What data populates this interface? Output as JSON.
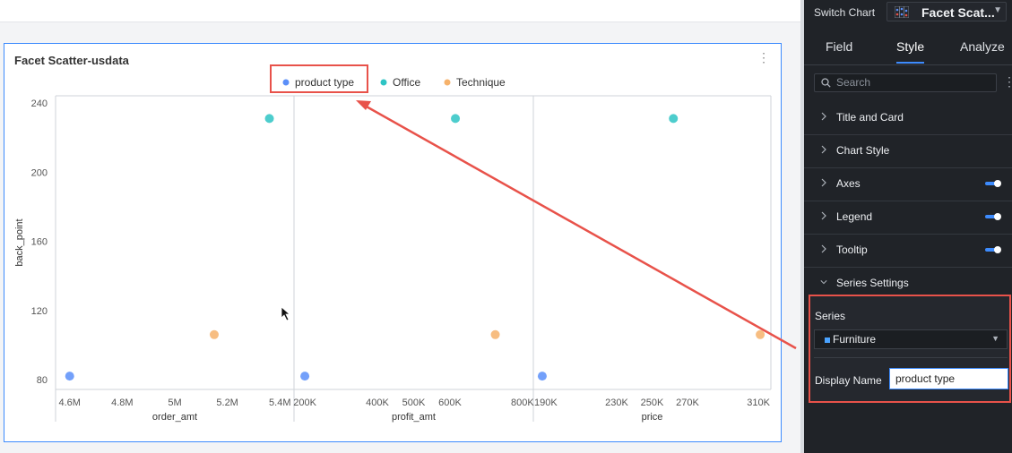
{
  "chart_card": {
    "title": "Facet Scatter-usdata",
    "menu_icon": "more-vertical-icon"
  },
  "chart_data": {
    "type": "scatter",
    "title": "Facet Scatter-usdata",
    "legend": {
      "placement": "top-center",
      "items": [
        {
          "label": "product type",
          "color": "#5b8ff9"
        },
        {
          "label": "Office",
          "color": "#2ec4c4"
        },
        {
          "label": "Technique",
          "color": "#f6b26b"
        }
      ]
    },
    "y_axis": {
      "label": "back_point",
      "ticks": [
        "240",
        "200",
        "160",
        "120",
        "80"
      ],
      "range": [
        80,
        240
      ]
    },
    "grid": false,
    "facets": [
      {
        "xlabel": "order_amt",
        "ticks": [
          {
            "v": 4.6,
            "label": "4.6M"
          },
          {
            "v": 4.8,
            "label": "4.8M"
          },
          {
            "v": 5.0,
            "label": "5M"
          },
          {
            "v": 5.2,
            "label": "5.2M"
          },
          {
            "v": 5.4,
            "label": "5.4M"
          }
        ],
        "range": [
          4.56,
          5.44
        ],
        "points": [
          {
            "series": "product type",
            "x": 4.6,
            "y": 82
          },
          {
            "series": "Office",
            "x": 5.36,
            "y": 231
          },
          {
            "series": "Technique",
            "x": 5.15,
            "y": 106
          }
        ]
      },
      {
        "xlabel": "profit_amt",
        "ticks": [
          {
            "v": 200,
            "label": "200K"
          },
          {
            "v": 400,
            "label": "400K"
          },
          {
            "v": 500,
            "label": "500K"
          },
          {
            "v": 600,
            "label": "600K"
          },
          {
            "v": 800,
            "label": "800K"
          }
        ],
        "range": [
          180,
          820
        ],
        "points": [
          {
            "series": "product type",
            "x": 200,
            "y": 82
          },
          {
            "series": "Office",
            "x": 615,
            "y": 231
          },
          {
            "series": "Technique",
            "x": 725,
            "y": 106
          }
        ]
      },
      {
        "xlabel": "price",
        "ticks": [
          {
            "v": 190,
            "label": "190K"
          },
          {
            "v": 230,
            "label": "230K"
          },
          {
            "v": 250,
            "label": "250K"
          },
          {
            "v": 270,
            "label": "270K"
          },
          {
            "v": 310,
            "label": "310K"
          }
        ],
        "range": [
          185,
          315
        ],
        "points": [
          {
            "series": "product type",
            "x": 188,
            "y": 82
          },
          {
            "series": "Office",
            "x": 262,
            "y": 231
          },
          {
            "series": "Technique",
            "x": 311,
            "y": 106
          }
        ]
      }
    ]
  },
  "panel": {
    "switch_label": "Switch Chart",
    "switch_value": "Facet Scat...",
    "tabs": [
      "Field",
      "Style",
      "Analyze"
    ],
    "active_tab": "Style",
    "search_placeholder": "Search",
    "sections": [
      {
        "label": "Title and Card",
        "toggle": false
      },
      {
        "label": "Chart Style",
        "toggle": false
      },
      {
        "label": "Axes",
        "toggle": true
      },
      {
        "label": "Legend",
        "toggle": true
      },
      {
        "label": "Tooltip",
        "toggle": true
      },
      {
        "label": "Series Settings",
        "toggle": false,
        "expanded": true
      }
    ],
    "series_label": "Series",
    "series_value": "Furniture",
    "display_name_label": "Display Name",
    "display_name_value": "product type"
  },
  "annotation": {
    "color": "#e8524a"
  }
}
